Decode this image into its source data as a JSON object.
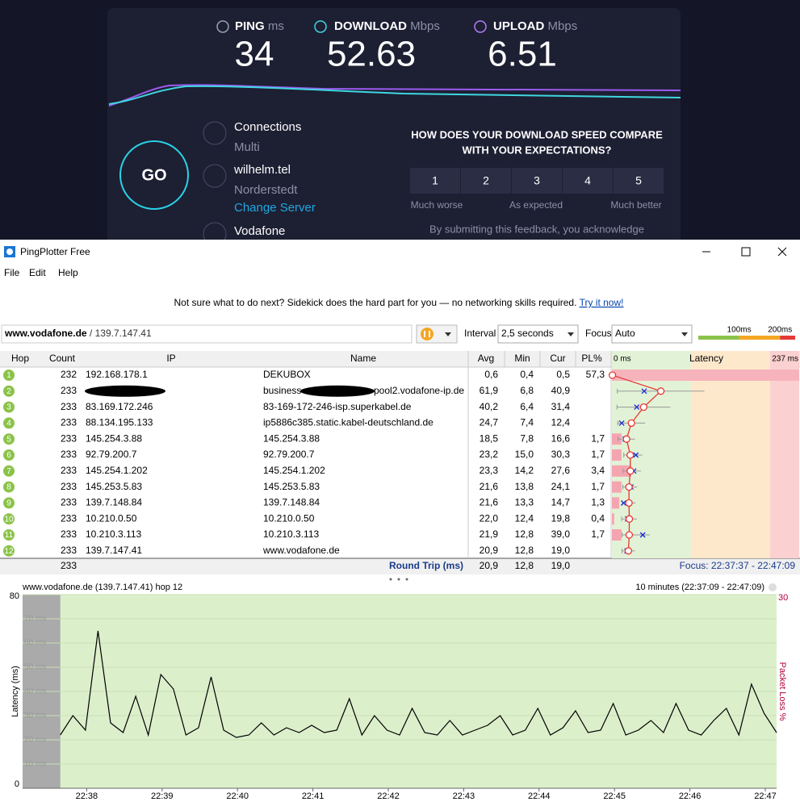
{
  "speedtest": {
    "metrics": [
      {
        "label": "PING",
        "unit": "ms",
        "value": 34
      },
      {
        "label": "DOWNLOAD",
        "unit": "Mbps",
        "value": 52.63
      },
      {
        "label": "UPLOAD",
        "unit": "Mbps",
        "value": 6.51
      }
    ],
    "go": "GO",
    "connections_label": "Connections",
    "connections_value": "Multi",
    "server": "wilhelm.tel",
    "server_location": "Norderstedt",
    "change_server": "Change Server",
    "isp": "Vodafone",
    "feedback_question": [
      "HOW DOES YOUR DOWNLOAD SPEED COMPARE",
      "WITH YOUR EXPECTATIONS?"
    ],
    "ratings": [
      1,
      2,
      3,
      4,
      5
    ],
    "rating_labels": [
      "Much worse",
      "As expected",
      "Much better"
    ],
    "disclaimer": "By submitting this feedback, you acknowledge"
  },
  "window": {
    "title": "PingPlotter Free",
    "menu": [
      "File",
      "Edit",
      "Help"
    ],
    "banner": "Not sure what to do next? Sidekick does the hard part for you — no networking skills required.",
    "banner_link": "Try it now!",
    "target_host": "www.vodafone.de",
    "target_ip": "/ 139.7.147.41",
    "interval_label": "Interval",
    "interval": "2,5 seconds",
    "focus_label": "Focus",
    "focus": "Auto",
    "thresholds": [
      {
        "value": 100,
        "label": "100ms"
      },
      {
        "value": 200,
        "label": "200ms"
      }
    ]
  },
  "table": {
    "columns": [
      "Hop",
      "Count",
      "IP",
      "Name",
      "Avg",
      "Min",
      "Cur",
      "PL%",
      "Latency"
    ],
    "latency_min": {
      "value": 0,
      "label": "0 ms"
    },
    "latency_max": {
      "value": 237,
      "label": "237 ms"
    },
    "rows": [
      [
        1,
        232,
        "192.168.178.1",
        "DEKUBOX",
        "0,6",
        "0,4",
        "0,5",
        "57,3"
      ],
      [
        2,
        233,
        null,
        [
          "business-",
          "pool2.vodafone-ip.de"
        ],
        "61,9",
        "6,8",
        "40,9",
        null
      ],
      [
        3,
        233,
        "83.169.172.246",
        "83-169-172-246-isp.superkabel.de",
        "40,2",
        "6,4",
        "31,4",
        null
      ],
      [
        4,
        233,
        "88.134.195.133",
        "ip5886c385.static.kabel-deutschland.de",
        "24,7",
        "7,4",
        "12,4",
        null
      ],
      [
        5,
        233,
        "145.254.3.88",
        "145.254.3.88",
        "18,5",
        "7,8",
        "16,6",
        "1,7"
      ],
      [
        6,
        233,
        "92.79.200.7",
        "92.79.200.7",
        "23,2",
        "15,0",
        "30,3",
        "1,7"
      ],
      [
        7,
        233,
        "145.254.1.202",
        "145.254.1.202",
        "23,3",
        "14,2",
        "27,6",
        "3,4"
      ],
      [
        8,
        233,
        "145.253.5.83",
        "145.253.5.83",
        "21,6",
        "13,8",
        "24,1",
        "1,7"
      ],
      [
        9,
        233,
        "139.7.148.84",
        "139.7.148.84",
        "21,6",
        "13,3",
        "14,7",
        "1,3"
      ],
      [
        10,
        233,
        "10.210.0.50",
        "10.210.0.50",
        "22,0",
        "12,4",
        "19,8",
        "0,4"
      ],
      [
        11,
        233,
        "10.210.3.113",
        "10.210.3.113",
        "21,9",
        "12,8",
        "39,0",
        "1,7"
      ],
      [
        12,
        233,
        "139.7.147.41",
        "www.vodafone.de",
        "20,9",
        "12,8",
        "19,0",
        null
      ]
    ],
    "footer": {
      "count": 233,
      "label": "Round Trip (ms)",
      "avg": "20,9",
      "min": "12,8",
      "cur": "19,0",
      "focus": "Focus: 22:37:37 - 22:47:09"
    }
  },
  "chart_data": {
    "type": "line",
    "title": "www.vodafone.de (139.7.147.41) hop 12",
    "range_label": "10 minutes (22:37:09 - 22:47:09)",
    "y_label": "Latency (ms)",
    "y2_label": "Packet Loss %",
    "xlim": [
      0,
      600
    ],
    "xticks": [
      {
        "value": 51,
        "label": "22:38"
      },
      {
        "value": 111,
        "label": "22:39"
      },
      {
        "value": 171,
        "label": "22:40"
      },
      {
        "value": 231,
        "label": "22:41"
      },
      {
        "value": 291,
        "label": "22:42"
      },
      {
        "value": 351,
        "label": "22:43"
      },
      {
        "value": 411,
        "label": "22:44"
      },
      {
        "value": 471,
        "label": "22:45"
      },
      {
        "value": 531,
        "label": "22:46"
      },
      {
        "value": 591,
        "label": "22:47"
      }
    ],
    "ylim": [
      0,
      80
    ],
    "yticks": [
      0,
      {
        "value": 10,
        "label": "10 ms"
      },
      {
        "value": 20,
        "label": "20 ms"
      },
      {
        "value": 30,
        "label": "30 ms"
      },
      {
        "value": 40,
        "label": "40 ms"
      },
      {
        "value": 50,
        "label": "50 ms"
      },
      {
        "value": 60,
        "label": "60 ms"
      },
      {
        "value": 70,
        "label": "70 ms"
      },
      80
    ],
    "y2lim": [
      0,
      30
    ],
    "y2ticks": [
      30
    ],
    "grid": true,
    "series": [
      {
        "name": "www.vodafone.de",
        "color": "#000000",
        "x": [
          30,
          40,
          50,
          60,
          70,
          80,
          90,
          100,
          110,
          120,
          130,
          140,
          150,
          160,
          170,
          180,
          190,
          200,
          210,
          220,
          230,
          240,
          250,
          260,
          270,
          280,
          290,
          300,
          310,
          320,
          330,
          340,
          350,
          360,
          370,
          380,
          390,
          400,
          410,
          420,
          430,
          440,
          450,
          460,
          470,
          480,
          490,
          500,
          510,
          520,
          530,
          540,
          550,
          560,
          570,
          580,
          590,
          600
        ],
        "values": [
          22,
          30,
          24,
          65,
          27,
          23,
          38,
          22,
          47,
          41,
          22,
          25,
          46,
          24,
          21,
          22,
          27,
          22,
          25,
          23,
          26,
          23,
          24,
          37,
          22,
          30,
          24,
          22,
          33,
          23,
          22,
          28,
          22,
          24,
          26,
          30,
          22,
          24,
          33,
          22,
          25,
          32,
          23,
          24,
          35,
          22,
          24,
          28,
          23,
          35,
          24,
          22,
          28,
          33,
          22,
          43,
          31,
          23
        ]
      }
    ]
  }
}
